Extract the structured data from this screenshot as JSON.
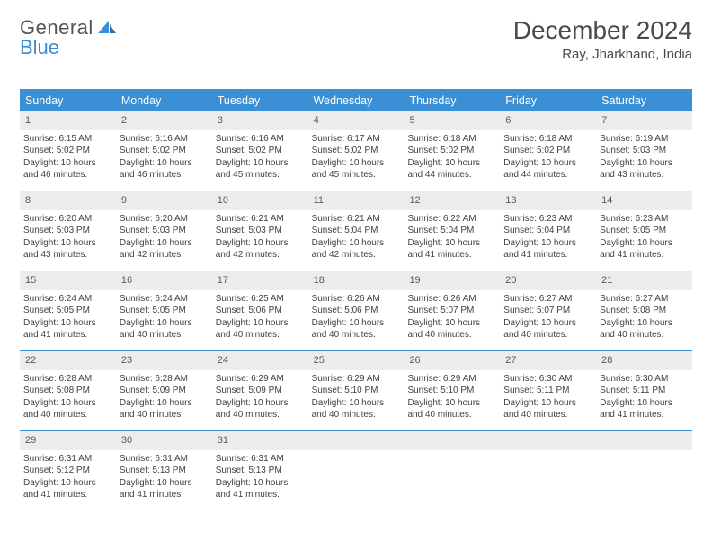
{
  "logo": {
    "word1": "General",
    "word2": "Blue"
  },
  "title": "December 2024",
  "location": "Ray, Jharkhand, India",
  "colors": {
    "accent": "#3b8fd4",
    "header_bg": "#3b8fd4",
    "daynum_bg": "#ececec",
    "text": "#404040",
    "title_text": "#4a4a4a"
  },
  "weekdays": [
    "Sunday",
    "Monday",
    "Tuesday",
    "Wednesday",
    "Thursday",
    "Friday",
    "Saturday"
  ],
  "weeks": [
    [
      {
        "n": "1",
        "sr": "6:15 AM",
        "ss": "5:02 PM",
        "dh": "10",
        "dm": "46"
      },
      {
        "n": "2",
        "sr": "6:16 AM",
        "ss": "5:02 PM",
        "dh": "10",
        "dm": "46"
      },
      {
        "n": "3",
        "sr": "6:16 AM",
        "ss": "5:02 PM",
        "dh": "10",
        "dm": "45"
      },
      {
        "n": "4",
        "sr": "6:17 AM",
        "ss": "5:02 PM",
        "dh": "10",
        "dm": "45"
      },
      {
        "n": "5",
        "sr": "6:18 AM",
        "ss": "5:02 PM",
        "dh": "10",
        "dm": "44"
      },
      {
        "n": "6",
        "sr": "6:18 AM",
        "ss": "5:02 PM",
        "dh": "10",
        "dm": "44"
      },
      {
        "n": "7",
        "sr": "6:19 AM",
        "ss": "5:03 PM",
        "dh": "10",
        "dm": "43"
      }
    ],
    [
      {
        "n": "8",
        "sr": "6:20 AM",
        "ss": "5:03 PM",
        "dh": "10",
        "dm": "43"
      },
      {
        "n": "9",
        "sr": "6:20 AM",
        "ss": "5:03 PM",
        "dh": "10",
        "dm": "42"
      },
      {
        "n": "10",
        "sr": "6:21 AM",
        "ss": "5:03 PM",
        "dh": "10",
        "dm": "42"
      },
      {
        "n": "11",
        "sr": "6:21 AM",
        "ss": "5:04 PM",
        "dh": "10",
        "dm": "42"
      },
      {
        "n": "12",
        "sr": "6:22 AM",
        "ss": "5:04 PM",
        "dh": "10",
        "dm": "41"
      },
      {
        "n": "13",
        "sr": "6:23 AM",
        "ss": "5:04 PM",
        "dh": "10",
        "dm": "41"
      },
      {
        "n": "14",
        "sr": "6:23 AM",
        "ss": "5:05 PM",
        "dh": "10",
        "dm": "41"
      }
    ],
    [
      {
        "n": "15",
        "sr": "6:24 AM",
        "ss": "5:05 PM",
        "dh": "10",
        "dm": "41"
      },
      {
        "n": "16",
        "sr": "6:24 AM",
        "ss": "5:05 PM",
        "dh": "10",
        "dm": "40"
      },
      {
        "n": "17",
        "sr": "6:25 AM",
        "ss": "5:06 PM",
        "dh": "10",
        "dm": "40"
      },
      {
        "n": "18",
        "sr": "6:26 AM",
        "ss": "5:06 PM",
        "dh": "10",
        "dm": "40"
      },
      {
        "n": "19",
        "sr": "6:26 AM",
        "ss": "5:07 PM",
        "dh": "10",
        "dm": "40"
      },
      {
        "n": "20",
        "sr": "6:27 AM",
        "ss": "5:07 PM",
        "dh": "10",
        "dm": "40"
      },
      {
        "n": "21",
        "sr": "6:27 AM",
        "ss": "5:08 PM",
        "dh": "10",
        "dm": "40"
      }
    ],
    [
      {
        "n": "22",
        "sr": "6:28 AM",
        "ss": "5:08 PM",
        "dh": "10",
        "dm": "40"
      },
      {
        "n": "23",
        "sr": "6:28 AM",
        "ss": "5:09 PM",
        "dh": "10",
        "dm": "40"
      },
      {
        "n": "24",
        "sr": "6:29 AM",
        "ss": "5:09 PM",
        "dh": "10",
        "dm": "40"
      },
      {
        "n": "25",
        "sr": "6:29 AM",
        "ss": "5:10 PM",
        "dh": "10",
        "dm": "40"
      },
      {
        "n": "26",
        "sr": "6:29 AM",
        "ss": "5:10 PM",
        "dh": "10",
        "dm": "40"
      },
      {
        "n": "27",
        "sr": "6:30 AM",
        "ss": "5:11 PM",
        "dh": "10",
        "dm": "40"
      },
      {
        "n": "28",
        "sr": "6:30 AM",
        "ss": "5:11 PM",
        "dh": "10",
        "dm": "41"
      }
    ],
    [
      {
        "n": "29",
        "sr": "6:31 AM",
        "ss": "5:12 PM",
        "dh": "10",
        "dm": "41"
      },
      {
        "n": "30",
        "sr": "6:31 AM",
        "ss": "5:13 PM",
        "dh": "10",
        "dm": "41"
      },
      {
        "n": "31",
        "sr": "6:31 AM",
        "ss": "5:13 PM",
        "dh": "10",
        "dm": "41"
      },
      {
        "empty": true
      },
      {
        "empty": true
      },
      {
        "empty": true
      },
      {
        "empty": true
      }
    ]
  ],
  "labels": {
    "sunrise": "Sunrise: ",
    "sunset": "Sunset: ",
    "daylight_pre": "Daylight: ",
    "daylight_mid": " hours and ",
    "daylight_post": " minutes."
  }
}
